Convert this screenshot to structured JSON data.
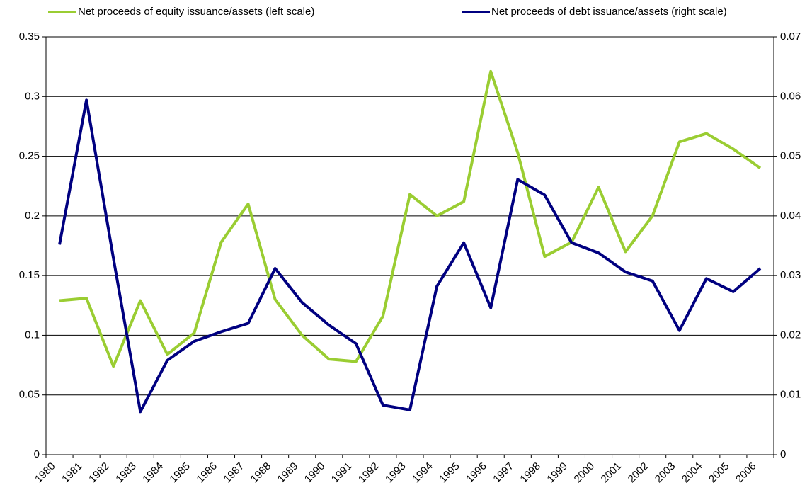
{
  "chart_data": {
    "type": "line",
    "categories": [
      "1980",
      "1981",
      "1982",
      "1983",
      "1984",
      "1985",
      "1986",
      "1987",
      "1988",
      "1989",
      "1990",
      "1991",
      "1992",
      "1993",
      "1994",
      "1995",
      "1996",
      "1997",
      "1998",
      "1999",
      "2000",
      "2001",
      "2002",
      "2003",
      "2004",
      "2005",
      "2006"
    ],
    "series": [
      {
        "name": "Net proceeds of equity issuance/assets (left scale)",
        "color": "#9acd32",
        "values": [
          0.129,
          0.131,
          0.074,
          0.129,
          0.084,
          0.102,
          0.178,
          0.21,
          0.13,
          0.1,
          0.08,
          0.078,
          0.116,
          0.218,
          0.2,
          0.212,
          0.321,
          0.253,
          0.166,
          0.178,
          0.224,
          0.17,
          0.2,
          0.262,
          0.269,
          0.256,
          0.24
        ]
      },
      {
        "name": "Net proceeds of debt issuance/assets (right scale)",
        "color": "#000080",
        "axis": "y2",
        "values": [
          0.0352,
          0.0594,
          0.0329,
          0.0072,
          0.0158,
          0.019,
          0.0206,
          0.022,
          0.0312,
          0.0255,
          0.0217,
          0.0186,
          0.0083,
          0.0075,
          0.0282,
          0.0355,
          0.0246,
          0.0461,
          0.0435,
          0.0355,
          0.0338,
          0.0306,
          0.0291,
          0.0208,
          0.0295,
          0.0273,
          0.0312
        ]
      }
    ],
    "ylim": [
      0,
      0.35
    ],
    "yticks": [
      0,
      0.05,
      0.1,
      0.15,
      0.2,
      0.25,
      0.3,
      0.35
    ],
    "y2lim": [
      0,
      0.07
    ],
    "y2ticks": [
      0,
      0.01,
      0.02,
      0.03,
      0.04,
      0.05,
      0.06,
      0.07
    ],
    "grid": true,
    "legend": "top"
  }
}
